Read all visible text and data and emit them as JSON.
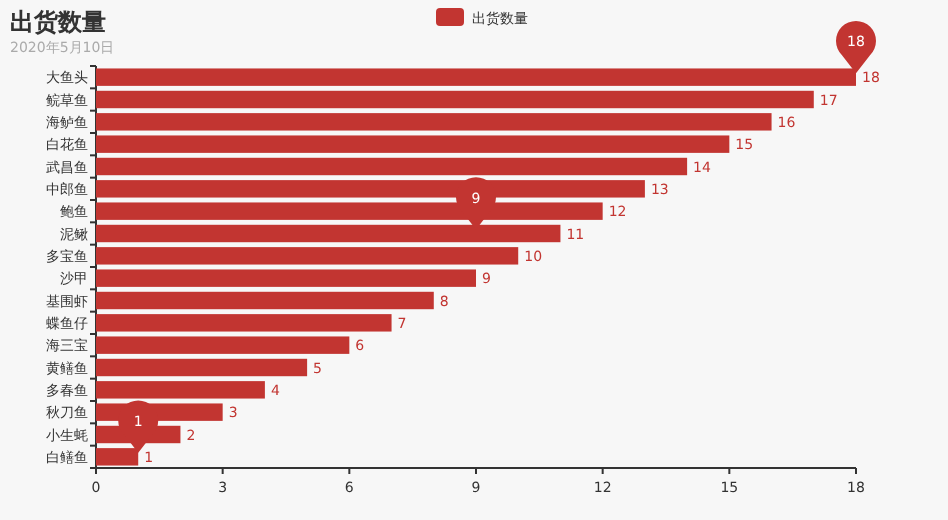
{
  "chart_data": {
    "type": "bar",
    "orientation": "horizontal",
    "title": "出货数量",
    "subtitle": "2020年5月10日",
    "categories": [
      "大鱼头",
      "鲩草鱼",
      "海鲈鱼",
      "白花鱼",
      "武昌鱼",
      "中郎鱼",
      "鲍鱼",
      "泥鳅",
      "多宝鱼",
      "沙甲",
      "基围虾",
      "蝶鱼仔",
      "海三宝",
      "黄鳝鱼",
      "多春鱼",
      "秋刀鱼",
      "小生蚝",
      "白鳝鱼"
    ],
    "series": [
      {
        "name": "出货数量",
        "color": "#c23531",
        "values": [
          18,
          17,
          16,
          15,
          14,
          13,
          12,
          11,
          10,
          9,
          8,
          7,
          6,
          5,
          4,
          3,
          2,
          1
        ]
      }
    ],
    "xlim": [
      0,
      18
    ],
    "xticks": [
      0,
      3,
      6,
      9,
      12,
      15,
      18
    ],
    "data_labels": true,
    "legend": "top",
    "grid": false,
    "annotations": [
      {
        "text": "18",
        "x": 18,
        "y": "大鱼头"
      },
      {
        "text": "9",
        "x": 9,
        "y": "泥鳅"
      },
      {
        "text": "1",
        "x": 1,
        "y": "白鳝鱼"
      }
    ]
  }
}
